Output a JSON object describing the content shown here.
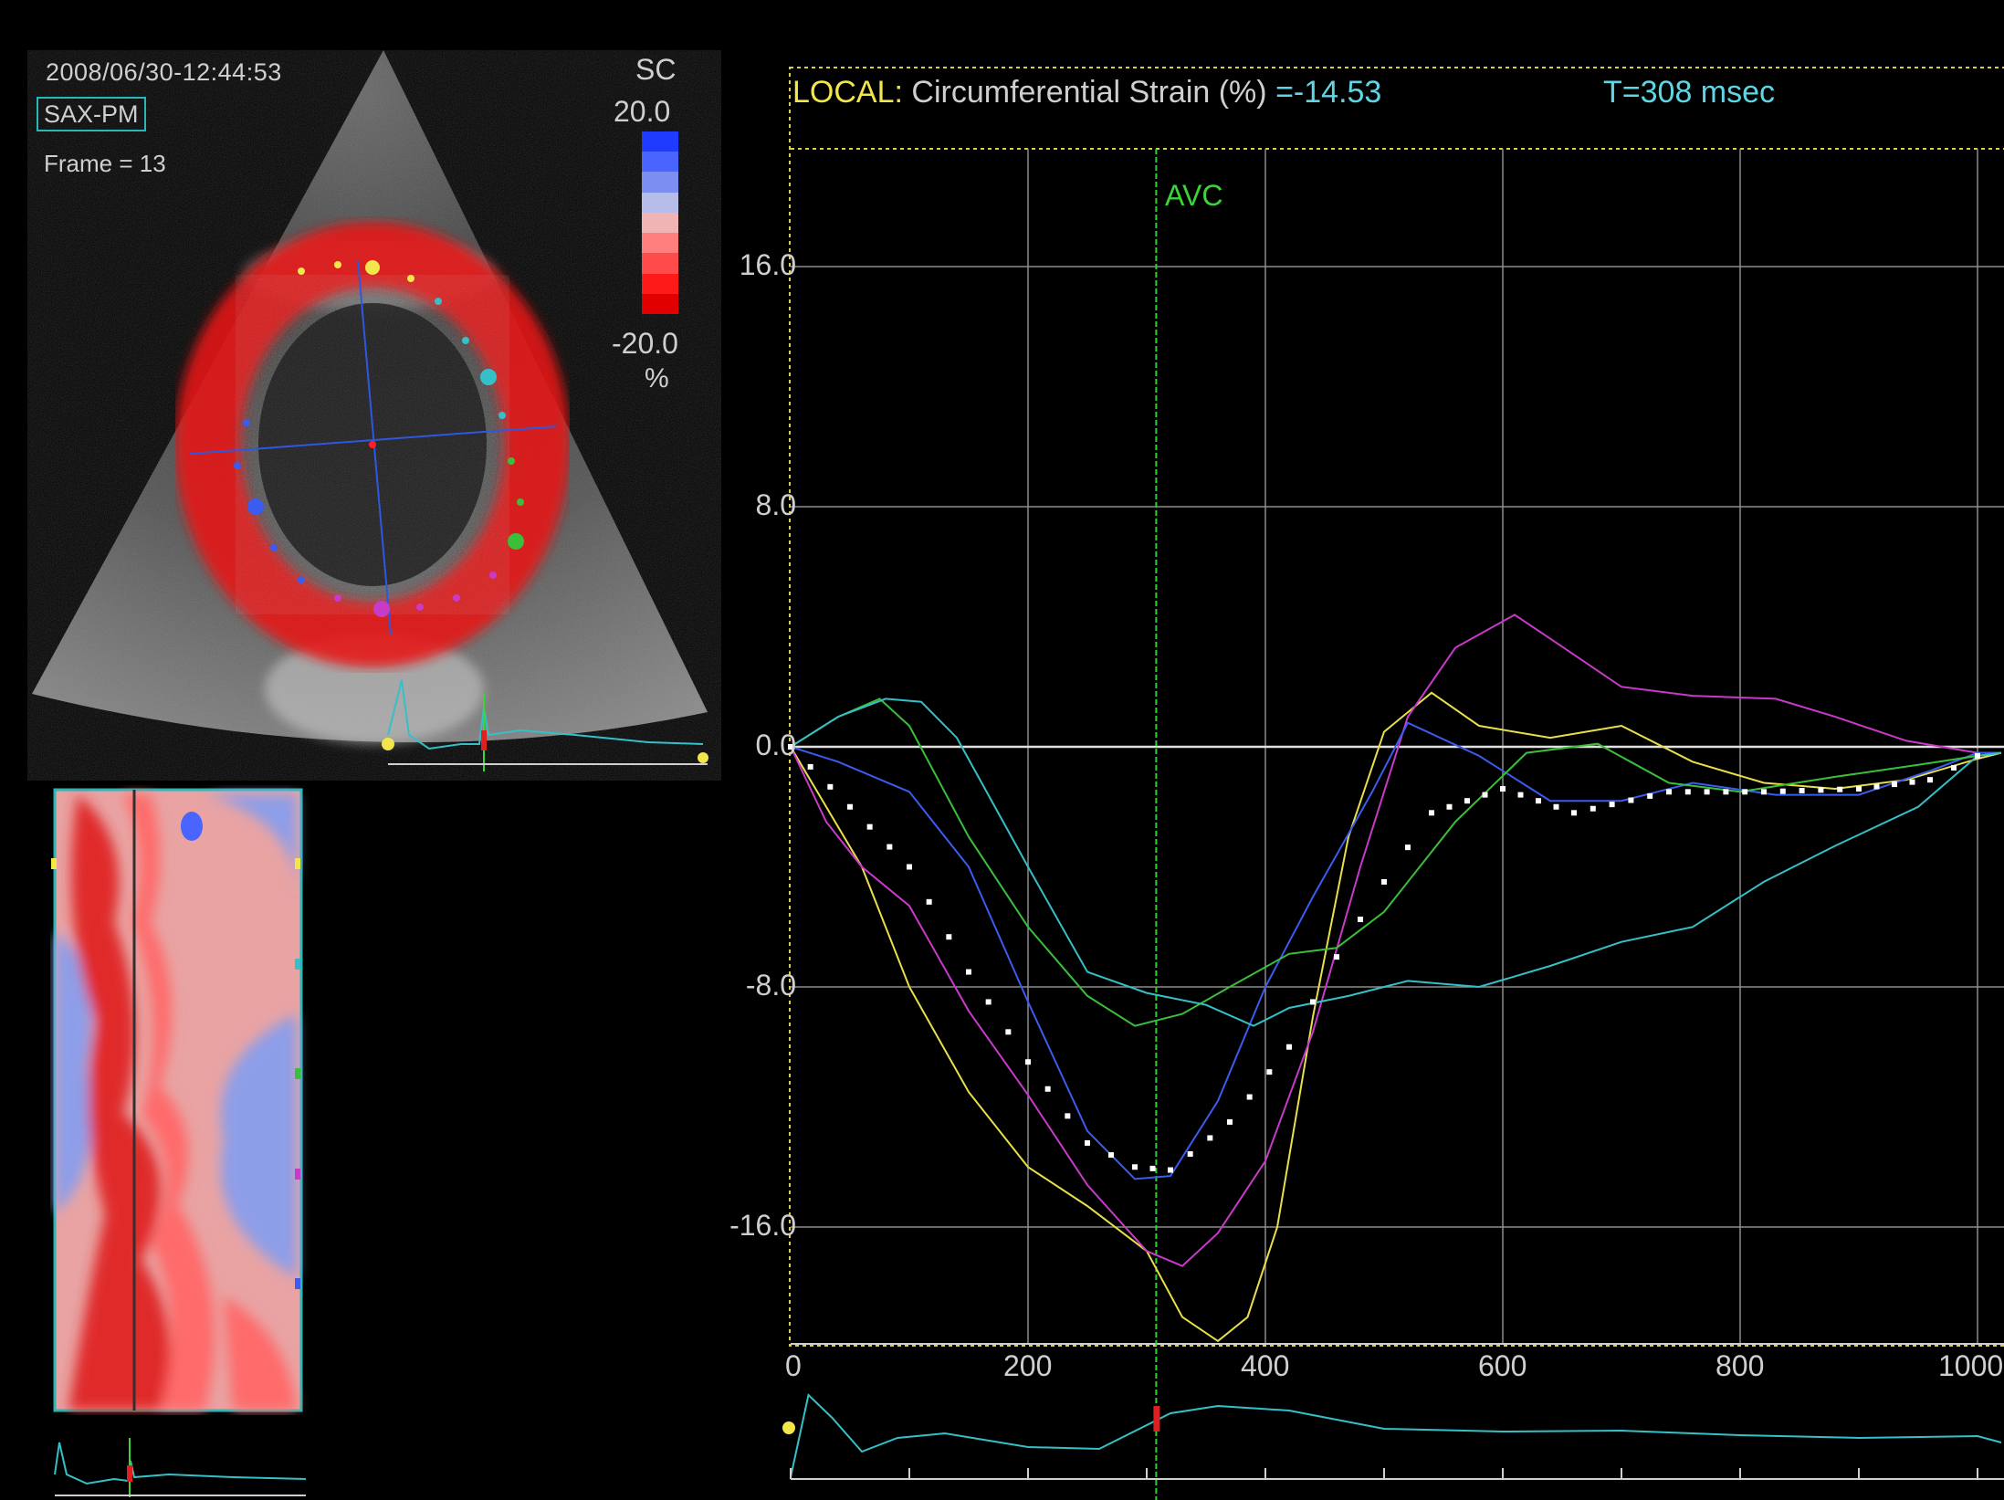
{
  "echo_panel": {
    "timestamp": "2008/06/30-12:44:53",
    "view_label": "SAX-PM",
    "frame_label": "Frame = 13",
    "scale_title": "SC",
    "scale_max": "20.0",
    "scale_min": "-20.0",
    "scale_unit": "%",
    "scale_colors": [
      "#1f3bff",
      "#4a64ff",
      "#7c8ff0",
      "#b5bde8",
      "#f0b4b4",
      "#ff7f7f",
      "#ff4b4b",
      "#ff1a1a",
      "#e00000"
    ]
  },
  "header": {
    "mode_label": "LOCAL:",
    "measure_label": "Circumferential Strain (%)",
    "value_text": "=-14.53",
    "time_text": "T=308 msec"
  },
  "colors": {
    "yellow": "#e8e04a",
    "magenta": "#c83ac8",
    "blue": "#3a5cf0",
    "green": "#3bbf3b",
    "cyan": "#35c0c8",
    "average": "#ffffff",
    "avc_line": "#2fd12f",
    "grid": "#8c8c8c"
  },
  "chart_data": {
    "type": "line",
    "title": "",
    "xlabel": "",
    "ylabel": "",
    "xlim": [
      0,
      1020
    ],
    "ylim": [
      -20,
      20
    ],
    "x_ticks": [
      "0",
      "200",
      "400",
      "600",
      "800",
      "1000"
    ],
    "y_ticks": [
      "16.0",
      "8.0",
      "0.0",
      "-8.0",
      "-16.0"
    ],
    "grid": true,
    "annotation": {
      "label": "AVC",
      "x": 308
    },
    "series": [
      {
        "color": "yellow",
        "points": [
          [
            0,
            0
          ],
          [
            30,
            -2
          ],
          [
            60,
            -4
          ],
          [
            100,
            -8
          ],
          [
            150,
            -11.5
          ],
          [
            200,
            -14
          ],
          [
            250,
            -15.3
          ],
          [
            300,
            -16.8
          ],
          [
            330,
            -19
          ],
          [
            360,
            -19.8
          ],
          [
            385,
            -19
          ],
          [
            410,
            -16
          ],
          [
            440,
            -9
          ],
          [
            470,
            -3
          ],
          [
            500,
            0.5
          ],
          [
            540,
            1.8
          ],
          [
            580,
            0.7
          ],
          [
            640,
            0.3
          ],
          [
            700,
            0.7
          ],
          [
            760,
            -0.5
          ],
          [
            820,
            -1.2
          ],
          [
            880,
            -1.4
          ],
          [
            940,
            -1.1
          ],
          [
            1000,
            -0.4
          ],
          [
            1020,
            -0.2
          ]
        ]
      },
      {
        "color": "magenta",
        "points": [
          [
            0,
            0
          ],
          [
            30,
            -2.5
          ],
          [
            60,
            -4
          ],
          [
            100,
            -5.3
          ],
          [
            150,
            -8.8
          ],
          [
            200,
            -11.6
          ],
          [
            250,
            -14.6
          ],
          [
            300,
            -16.8
          ],
          [
            330,
            -17.3
          ],
          [
            360,
            -16.2
          ],
          [
            400,
            -13.8
          ],
          [
            440,
            -9.5
          ],
          [
            480,
            -4
          ],
          [
            520,
            1
          ],
          [
            560,
            3.3
          ],
          [
            610,
            4.4
          ],
          [
            640,
            3.6
          ],
          [
            700,
            2
          ],
          [
            760,
            1.7
          ],
          [
            830,
            1.6
          ],
          [
            880,
            1
          ],
          [
            940,
            0.2
          ],
          [
            1000,
            -0.2
          ],
          [
            1020,
            -0.2
          ]
        ]
      },
      {
        "color": "blue",
        "points": [
          [
            0,
            0
          ],
          [
            40,
            -0.5
          ],
          [
            100,
            -1.5
          ],
          [
            150,
            -4
          ],
          [
            200,
            -8.5
          ],
          [
            250,
            -12.8
          ],
          [
            290,
            -14.4
          ],
          [
            320,
            -14.3
          ],
          [
            360,
            -11.8
          ],
          [
            400,
            -8
          ],
          [
            440,
            -5
          ],
          [
            490,
            -1.5
          ],
          [
            520,
            0.8
          ],
          [
            580,
            -0.3
          ],
          [
            640,
            -1.8
          ],
          [
            700,
            -1.8
          ],
          [
            760,
            -1.2
          ],
          [
            830,
            -1.6
          ],
          [
            900,
            -1.6
          ],
          [
            960,
            -0.8
          ],
          [
            1000,
            -0.2
          ],
          [
            1020,
            -0.2
          ]
        ]
      },
      {
        "color": "green",
        "points": [
          [
            0,
            0
          ],
          [
            40,
            1
          ],
          [
            75,
            1.6
          ],
          [
            100,
            0.7
          ],
          [
            150,
            -3
          ],
          [
            200,
            -6
          ],
          [
            250,
            -8.3
          ],
          [
            290,
            -9.3
          ],
          [
            330,
            -8.9
          ],
          [
            370,
            -8
          ],
          [
            420,
            -6.9
          ],
          [
            460,
            -6.7
          ],
          [
            500,
            -5.5
          ],
          [
            560,
            -2.5
          ],
          [
            620,
            -0.2
          ],
          [
            680,
            0.1
          ],
          [
            740,
            -1.2
          ],
          [
            800,
            -1.5
          ],
          [
            880,
            -1
          ],
          [
            950,
            -0.6
          ],
          [
            1000,
            -0.3
          ],
          [
            1020,
            -0.2
          ]
        ]
      },
      {
        "color": "cyan",
        "points": [
          [
            0,
            0
          ],
          [
            40,
            1
          ],
          [
            80,
            1.6
          ],
          [
            110,
            1.5
          ],
          [
            140,
            0.3
          ],
          [
            200,
            -4
          ],
          [
            250,
            -7.5
          ],
          [
            300,
            -8.2
          ],
          [
            350,
            -8.6
          ],
          [
            390,
            -9.3
          ],
          [
            420,
            -8.7
          ],
          [
            470,
            -8.3
          ],
          [
            520,
            -7.8
          ],
          [
            580,
            -8
          ],
          [
            640,
            -7.3
          ],
          [
            700,
            -6.5
          ],
          [
            760,
            -6
          ],
          [
            820,
            -4.5
          ],
          [
            880,
            -3.3
          ],
          [
            950,
            -2
          ],
          [
            1000,
            -0.3
          ],
          [
            1020,
            -0.2
          ]
        ]
      },
      {
        "color": "average",
        "dotted": true,
        "points": [
          [
            0,
            0
          ],
          [
            50,
            -2
          ],
          [
            100,
            -4
          ],
          [
            150,
            -7.5
          ],
          [
            200,
            -10.5
          ],
          [
            250,
            -13.2
          ],
          [
            290,
            -14
          ],
          [
            320,
            -14.1
          ],
          [
            370,
            -12.5
          ],
          [
            420,
            -10
          ],
          [
            460,
            -7
          ],
          [
            500,
            -4.5
          ],
          [
            540,
            -2.2
          ],
          [
            600,
            -1.4
          ],
          [
            660,
            -2.2
          ],
          [
            740,
            -1.5
          ],
          [
            820,
            -1.5
          ],
          [
            900,
            -1.4
          ],
          [
            960,
            -1.1
          ],
          [
            1000,
            -0.3
          ],
          [
            1020,
            -0.2
          ]
        ]
      }
    ]
  }
}
